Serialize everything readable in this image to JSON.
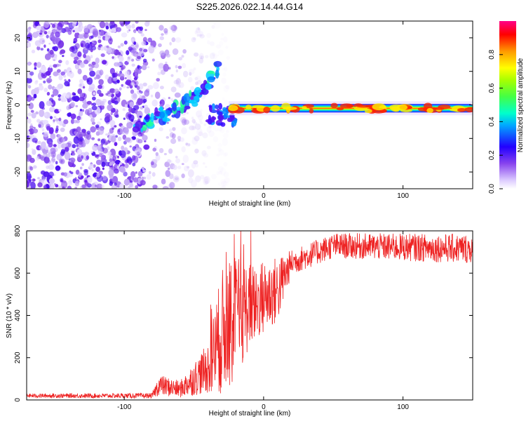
{
  "figure": {
    "title": "S225.2026.022.14.44.G14"
  },
  "chart_data": [
    {
      "type": "heatmap",
      "name": "spectrogram",
      "xlabel": "Height of straight line (km)",
      "ylabel": "Frequency (Hz)",
      "xlim": [
        -170,
        150
      ],
      "ylim": [
        -25,
        25
      ],
      "xticks": [
        -100,
        0,
        100
      ],
      "yticks": [
        -20,
        -10,
        0,
        10,
        20
      ],
      "colorbar": {
        "label": "Normalized spectral amplitude",
        "range": [
          0,
          1
        ],
        "ticks": [
          0.0,
          0.2,
          0.4,
          0.6,
          0.8
        ],
        "colors": [
          "#ffffff",
          "#ddccff",
          "#8844ee",
          "#2200ff",
          "#00aaff",
          "#00ffcc",
          "#44ff44",
          "#aaff00",
          "#ffff00",
          "#ff9900",
          "#ff0000",
          "#ff0088"
        ]
      },
      "features": {
        "noise_region_x": [
          -170,
          -85
        ],
        "rising_segment": [
          [
            -92,
            -8
          ],
          [
            -80,
            -4
          ],
          [
            -65,
            -2
          ],
          [
            -55,
            1
          ],
          [
            -45,
            3
          ],
          [
            -32,
            12
          ]
        ],
        "steady_line_x": [
          -25,
          150
        ],
        "steady_line_freq": -1,
        "steady_line_amplitude": 0.95
      }
    },
    {
      "type": "line",
      "name": "snr",
      "xlabel": "Height of straight line (km)",
      "ylabel": "SNR (10 * v/v)",
      "xlim": [
        -170,
        150
      ],
      "ylim": [
        0,
        800
      ],
      "xticks": [
        -100,
        0,
        100
      ],
      "yticks": [
        0,
        200,
        400,
        600,
        800
      ],
      "color": "#ee2222",
      "envelope": [
        {
          "x": -170,
          "base": 20,
          "spread": 10
        },
        {
          "x": -80,
          "base": 20,
          "spread": 12
        },
        {
          "x": -75,
          "base": 70,
          "spread": 50
        },
        {
          "x": -60,
          "base": 50,
          "spread": 40
        },
        {
          "x": -40,
          "base": 150,
          "spread": 120
        },
        {
          "x": -30,
          "base": 320,
          "spread": 300
        },
        {
          "x": -20,
          "base": 380,
          "spread": 300
        },
        {
          "x": -10,
          "base": 450,
          "spread": 200
        },
        {
          "x": 10,
          "base": 520,
          "spread": 160
        },
        {
          "x": 20,
          "base": 650,
          "spread": 60
        },
        {
          "x": 50,
          "base": 730,
          "spread": 60
        },
        {
          "x": 150,
          "base": 715,
          "spread": 70
        }
      ]
    }
  ]
}
